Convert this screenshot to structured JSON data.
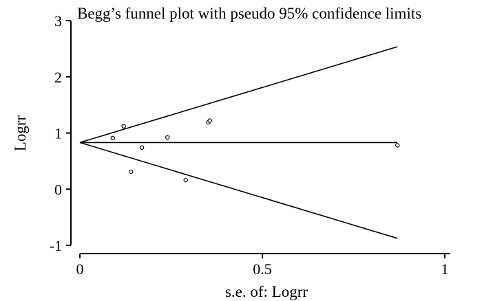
{
  "chart_data": {
    "type": "scatter",
    "title": "Begg’s funnel plot with pseudo 95% confidence limits",
    "xlabel": "s.e. of: Logrr",
    "ylabel": "Logrr",
    "xlim": [
      0,
      1
    ],
    "ylim": [
      -1,
      3
    ],
    "x_ticks": [
      "0",
      "0.5",
      "1"
    ],
    "y_ticks": [
      "3",
      "2",
      "1",
      "0",
      "-1"
    ],
    "pooled_estimate": 0.83,
    "funnel_max_se": 0.87,
    "points": [
      {
        "x": 0.09,
        "y": 0.91
      },
      {
        "x": 0.12,
        "y": 1.12
      },
      {
        "x": 0.14,
        "y": 0.31
      },
      {
        "x": 0.17,
        "y": 0.74
      },
      {
        "x": 0.24,
        "y": 0.92
      },
      {
        "x": 0.29,
        "y": 0.16
      },
      {
        "x": 0.352,
        "y": 1.19
      },
      {
        "x": 0.356,
        "y": 1.22
      },
      {
        "x": 0.87,
        "y": 0.78
      }
    ],
    "grid": false,
    "legend": "none",
    "line_color": "#000000"
  }
}
